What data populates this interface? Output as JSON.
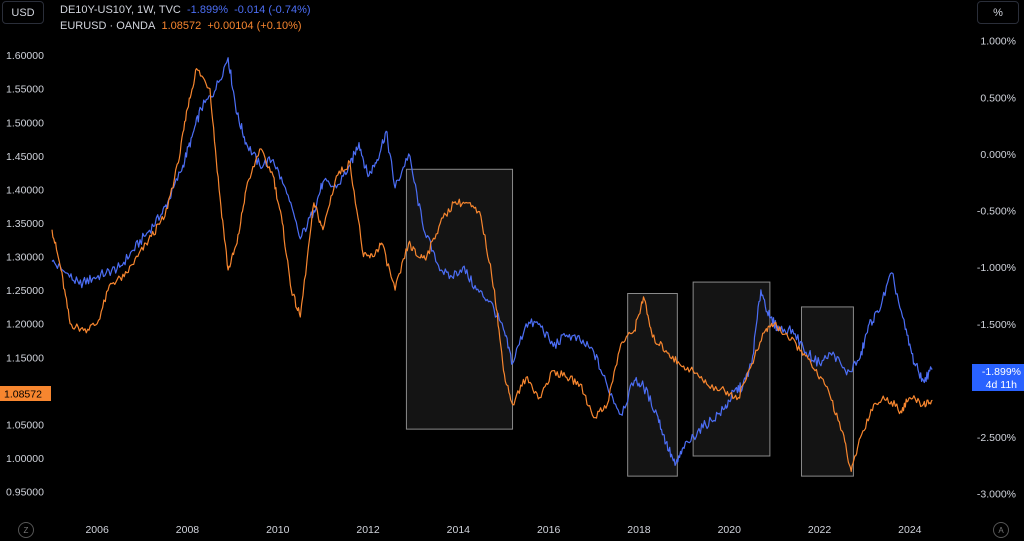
{
  "toolbar": {
    "left_scale_label": "USD",
    "right_scale_label": "%",
    "zoom_label": "Z",
    "auto_label": "A"
  },
  "legend": {
    "series1_symbol": "DE10Y-US10Y, 1W, TVC",
    "series1_value": "-1.899%",
    "series1_change": "-0.014 (-0.74%)",
    "series2_symbol": "EURUSD · OANDA",
    "series2_value": "1.08572",
    "series2_change": "+0.00104 (+0.10%)"
  },
  "price_tags": {
    "eurusd": "1.08572",
    "spread": "-1.899%",
    "countdown": "4d 11h"
  },
  "colors": {
    "spread": "#4c6ef5",
    "eurusd": "#f7862f",
    "box_fill": "#141414",
    "box_stroke": "#8a8a8a",
    "axis_text": "#d1d4dc"
  },
  "chart_data": {
    "type": "line",
    "x_ticks": [
      "2006",
      "2008",
      "2010",
      "2012",
      "2014",
      "2016",
      "2018",
      "2020",
      "2022",
      "2024"
    ],
    "left_axis": {
      "ticks": [
        "1.60000",
        "1.55000",
        "1.50000",
        "1.45000",
        "1.40000",
        "1.35000",
        "1.30000",
        "1.25000",
        "1.20000",
        "1.15000",
        "1.10000",
        "1.05000",
        "1.00000",
        "0.95000"
      ],
      "range": [
        0.93,
        1.63
      ]
    },
    "right_axis": {
      "ticks": [
        "1.000%",
        "0.500%",
        "0.000%",
        "-0.500%",
        "-1.000%",
        "-1.500%",
        "-2.000%",
        "-2.500%",
        "-3.000%"
      ],
      "range": [
        -3.1,
        1.05
      ]
    },
    "highlight_boxes": [
      {
        "x_start": 2012.85,
        "x_end": 2015.2,
        "y_top": 1.43,
        "y_bottom": 1.043
      },
      {
        "x_start": 2017.75,
        "x_end": 2018.85,
        "y_top": 1.245,
        "y_bottom": 0.973
      },
      {
        "x_start": 2019.2,
        "x_end": 2020.9,
        "y_top": 1.262,
        "y_bottom": 1.003
      },
      {
        "x_start": 2021.6,
        "x_end": 2022.75,
        "y_top": 1.225,
        "y_bottom": 0.973
      }
    ],
    "series": [
      {
        "name": "DE10Y-US10Y, 1W, TVC",
        "axis": "right",
        "color": "#4c6ef5",
        "x": [
          2005.0,
          2005.3,
          2005.6,
          2005.9,
          2006.2,
          2006.5,
          2006.8,
          2007.1,
          2007.4,
          2007.6,
          2007.9,
          2008.1,
          2008.3,
          2008.6,
          2008.9,
          2009.1,
          2009.3,
          2009.6,
          2009.9,
          2010.2,
          2010.5,
          2010.8,
          2011.0,
          2011.3,
          2011.6,
          2011.8,
          2012.0,
          2012.2,
          2012.4,
          2012.6,
          2012.9,
          2013.2,
          2013.5,
          2013.8,
          2014.1,
          2014.4,
          2014.7,
          2015.0,
          2015.2,
          2015.5,
          2015.8,
          2016.1,
          2016.4,
          2016.7,
          2017.0,
          2017.3,
          2017.6,
          2017.9,
          2018.1,
          2018.4,
          2018.6,
          2018.8,
          2019.0,
          2019.3,
          2019.6,
          2019.9,
          2020.1,
          2020.3,
          2020.5,
          2020.7,
          2020.9,
          2021.1,
          2021.4,
          2021.7,
          2022.0,
          2022.3,
          2022.6,
          2022.9,
          2023.1,
          2023.3,
          2023.6,
          2023.9,
          2024.1,
          2024.3,
          2024.5
        ],
        "values": [
          -0.95,
          -1.05,
          -1.15,
          -1.1,
          -1.05,
          -1.0,
          -0.85,
          -0.7,
          -0.55,
          -0.4,
          -0.1,
          0.15,
          0.4,
          0.55,
          0.85,
          0.35,
          0.1,
          -0.1,
          -0.05,
          -0.35,
          -0.75,
          -0.5,
          -0.25,
          -0.3,
          -0.1,
          0.1,
          -0.2,
          -0.05,
          0.2,
          -0.3,
          0.0,
          -0.6,
          -0.95,
          -1.1,
          -1.0,
          -1.2,
          -1.3,
          -1.55,
          -1.85,
          -1.5,
          -1.5,
          -1.7,
          -1.6,
          -1.65,
          -1.75,
          -2.05,
          -2.3,
          -2.0,
          -2.05,
          -2.3,
          -2.55,
          -2.75,
          -2.6,
          -2.45,
          -2.35,
          -2.25,
          -2.1,
          -2.05,
          -1.85,
          -1.2,
          -1.45,
          -1.55,
          -1.55,
          -1.75,
          -1.85,
          -1.75,
          -1.95,
          -1.8,
          -1.5,
          -1.4,
          -1.05,
          -1.55,
          -1.85,
          -2.0,
          -1.9
        ]
      },
      {
        "name": "EURUSD · OANDA",
        "axis": "left",
        "color": "#f7862f",
        "x": [
          2005.0,
          2005.2,
          2005.4,
          2005.7,
          2006.0,
          2006.3,
          2006.6,
          2006.9,
          2007.2,
          2007.5,
          2007.8,
          2008.0,
          2008.2,
          2008.5,
          2008.7,
          2008.9,
          2009.1,
          2009.3,
          2009.6,
          2009.9,
          2010.1,
          2010.3,
          2010.5,
          2010.8,
          2011.0,
          2011.3,
          2011.6,
          2011.9,
          2012.1,
          2012.3,
          2012.6,
          2012.9,
          2013.1,
          2013.3,
          2013.6,
          2013.9,
          2014.2,
          2014.5,
          2014.8,
          2015.0,
          2015.2,
          2015.5,
          2015.8,
          2016.1,
          2016.4,
          2016.7,
          2017.0,
          2017.3,
          2017.6,
          2017.9,
          2018.1,
          2018.3,
          2018.6,
          2018.9,
          2019.2,
          2019.5,
          2019.9,
          2020.2,
          2020.5,
          2020.8,
          2021.0,
          2021.3,
          2021.6,
          2021.9,
          2022.2,
          2022.5,
          2022.7,
          2022.9,
          2023.2,
          2023.5,
          2023.8,
          2024.0,
          2024.3,
          2024.5
        ],
        "values": [
          1.34,
          1.28,
          1.2,
          1.19,
          1.2,
          1.26,
          1.27,
          1.3,
          1.33,
          1.36,
          1.44,
          1.52,
          1.58,
          1.55,
          1.4,
          1.28,
          1.32,
          1.4,
          1.46,
          1.42,
          1.35,
          1.25,
          1.21,
          1.38,
          1.34,
          1.42,
          1.44,
          1.3,
          1.3,
          1.32,
          1.25,
          1.32,
          1.3,
          1.3,
          1.35,
          1.38,
          1.38,
          1.36,
          1.25,
          1.13,
          1.08,
          1.12,
          1.09,
          1.13,
          1.12,
          1.11,
          1.06,
          1.08,
          1.17,
          1.19,
          1.24,
          1.18,
          1.16,
          1.14,
          1.13,
          1.11,
          1.1,
          1.09,
          1.14,
          1.19,
          1.2,
          1.18,
          1.16,
          1.13,
          1.1,
          1.04,
          0.98,
          1.03,
          1.08,
          1.09,
          1.07,
          1.09,
          1.08,
          1.086
        ]
      }
    ]
  }
}
